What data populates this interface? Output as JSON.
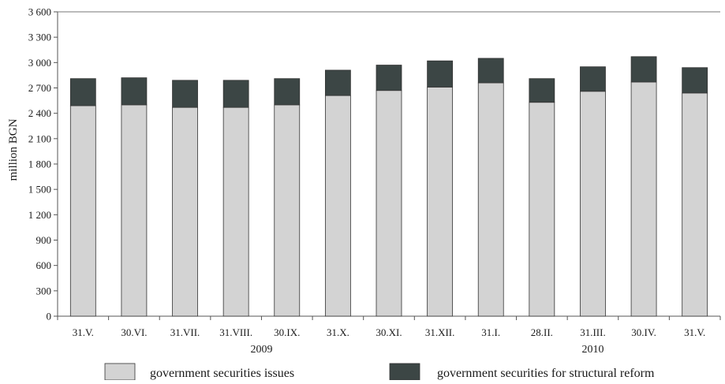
{
  "chart_data": {
    "type": "bar",
    "stacked": true,
    "categories": [
      "31.V.",
      "30.VI.",
      "31.VII.",
      "31.VIII.",
      "30.IX.",
      "31.X.",
      "30.XI.",
      "31.XII.",
      "31.I.",
      "28.II.",
      "31.III.",
      "30.IV.",
      "31.V."
    ],
    "year_groups": [
      {
        "label": "2009",
        "categories": [
          "31.V.",
          "30.VI.",
          "31.VII.",
          "31.VIII.",
          "30.IX.",
          "31.X.",
          "30.XI.",
          "31.XII."
        ]
      },
      {
        "label": "2010",
        "categories": [
          "31.I.",
          "28.II.",
          "31.III.",
          "30.IV.",
          "31.V."
        ]
      }
    ],
    "series": [
      {
        "name": "government securities issues",
        "color": "#d3d3d3",
        "values": [
          2490,
          2500,
          2470,
          2470,
          2500,
          2610,
          2670,
          2710,
          2760,
          2530,
          2660,
          2770,
          2640
        ]
      },
      {
        "name": "government securities for structural reform",
        "color": "#3c4645",
        "values": [
          320,
          320,
          320,
          320,
          310,
          300,
          300,
          310,
          290,
          280,
          290,
          300,
          300
        ]
      }
    ],
    "ylabel": "million BGN",
    "xlabel": "",
    "title": "",
    "ylim": [
      0,
      3600
    ],
    "yticks": [
      0,
      300,
      600,
      900,
      1200,
      1500,
      1800,
      2100,
      2400,
      2700,
      3000,
      3300,
      3600
    ],
    "ytick_labels": [
      "0",
      "300",
      "600",
      "900",
      "1 200",
      "1 500",
      "1 800",
      "2 100",
      "2 400",
      "2 700",
      "3 000",
      "3 300",
      "3 600"
    ],
    "grid": false,
    "legend_position": "bottom"
  }
}
